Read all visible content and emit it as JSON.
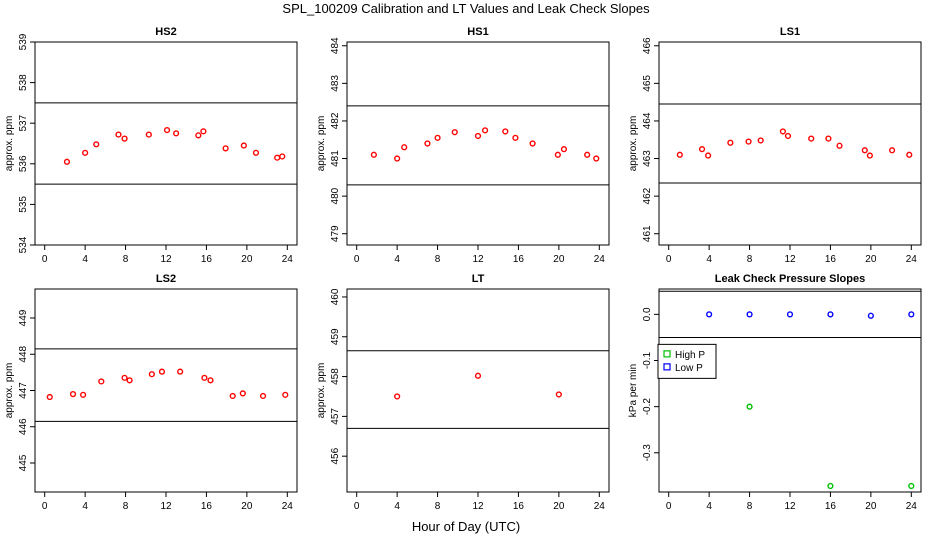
{
  "title": "SPL_100209  Calibration and LT Values and Leak Check Slopes",
  "xlabel": "Hour of Day (UTC)",
  "chart_data": [
    {
      "type": "scatter",
      "title": "HS2",
      "ylabel": "approx. ppm",
      "xlim": [
        0,
        24
      ],
      "ylim": [
        534,
        539
      ],
      "xticks": [
        0,
        4,
        8,
        12,
        16,
        20,
        24
      ],
      "yticks": [
        534,
        535,
        536,
        537,
        538,
        539
      ],
      "hlines": [
        535.5,
        537.5
      ],
      "series": [
        {
          "color": "#ff0000",
          "marker": "circle",
          "x": [
            2.2,
            4.0,
            5.1,
            7.3,
            7.9,
            10.3,
            12.1,
            13.0,
            15.2,
            15.7,
            17.9,
            19.7,
            20.9,
            23.0,
            23.5
          ],
          "y": [
            536.05,
            536.27,
            536.48,
            536.72,
            536.62,
            536.72,
            536.83,
            536.75,
            536.7,
            536.8,
            536.38,
            536.45,
            536.27,
            536.15,
            536.18
          ]
        }
      ]
    },
    {
      "type": "scatter",
      "title": "HS1",
      "ylabel": "approx. ppm",
      "xlim": [
        0,
        24
      ],
      "ylim": [
        478.7,
        484.1
      ],
      "xticks": [
        0,
        4,
        8,
        12,
        16,
        20,
        24
      ],
      "yticks": [
        479,
        480,
        481,
        482,
        483,
        484
      ],
      "hlines": [
        480.3,
        482.4
      ],
      "series": [
        {
          "color": "#ff0000",
          "marker": "circle",
          "x": [
            1.7,
            4.0,
            4.7,
            7.0,
            8.0,
            9.7,
            12.0,
            12.7,
            14.7,
            15.7,
            17.4,
            19.9,
            20.5,
            22.8,
            23.7
          ],
          "y": [
            481.1,
            481.0,
            481.3,
            481.4,
            481.55,
            481.7,
            481.6,
            481.75,
            481.72,
            481.55,
            481.4,
            481.1,
            481.25,
            481.1,
            481.0
          ]
        }
      ]
    },
    {
      "type": "scatter",
      "title": "LS1",
      "ylabel": "approx. ppm",
      "xlim": [
        0,
        24
      ],
      "ylim": [
        460.7,
        466.1
      ],
      "xticks": [
        0,
        4,
        8,
        12,
        16,
        20,
        24
      ],
      "yticks": [
        461,
        462,
        463,
        464,
        465,
        466
      ],
      "hlines": [
        462.35,
        464.45
      ],
      "series": [
        {
          "color": "#ff0000",
          "marker": "circle",
          "x": [
            1.1,
            3.3,
            3.9,
            6.1,
            7.9,
            9.1,
            11.3,
            11.8,
            14.1,
            15.8,
            16.9,
            19.4,
            19.9,
            22.1,
            23.8
          ],
          "y": [
            463.1,
            463.25,
            463.08,
            463.42,
            463.45,
            463.48,
            463.72,
            463.6,
            463.53,
            463.53,
            463.34,
            463.22,
            463.08,
            463.22,
            463.1
          ]
        }
      ]
    },
    {
      "type": "scatter",
      "title": "LS2",
      "ylabel": "approx. ppm",
      "xlim": [
        0,
        24
      ],
      "ylim": [
        444.2,
        449.8
      ],
      "xticks": [
        0,
        4,
        8,
        12,
        16,
        20,
        24
      ],
      "yticks": [
        445,
        446,
        447,
        448,
        449
      ],
      "hlines": [
        446.15,
        448.15
      ],
      "series": [
        {
          "color": "#ff0000",
          "marker": "circle",
          "x": [
            0.5,
            2.8,
            3.8,
            5.6,
            7.9,
            8.4,
            10.6,
            11.6,
            13.4,
            15.8,
            16.4,
            18.6,
            19.6,
            21.6,
            23.8
          ],
          "y": [
            446.82,
            446.9,
            446.88,
            447.25,
            447.35,
            447.28,
            447.45,
            447.52,
            447.52,
            447.35,
            447.28,
            446.85,
            446.92,
            446.85,
            446.88
          ]
        }
      ]
    },
    {
      "type": "scatter",
      "title": "LT",
      "ylabel": "approx. ppm",
      "xlim": [
        0,
        24
      ],
      "ylim": [
        455.1,
        460.2
      ],
      "xticks": [
        0,
        4,
        8,
        12,
        16,
        20,
        24
      ],
      "yticks": [
        456,
        457,
        458,
        459,
        460
      ],
      "hlines": [
        456.7,
        458.65
      ],
      "series": [
        {
          "color": "#ff0000",
          "marker": "circle",
          "x": [
            4.0,
            12.0,
            20.0
          ],
          "y": [
            457.5,
            458.02,
            457.55
          ]
        }
      ]
    },
    {
      "type": "scatter",
      "title": "Leak Check Pressure Slopes",
      "ylabel": "kPa per min",
      "xlim": [
        0,
        24
      ],
      "ylim": [
        -0.385,
        0.055
      ],
      "xticks": [
        0,
        4,
        8,
        12,
        16,
        20,
        24
      ],
      "yticks": [
        0.0,
        -0.1,
        -0.2,
        -0.3
      ],
      "ytick_labels": [
        "0.0",
        "-0.1",
        "-0.2",
        "-0.3"
      ],
      "hlines": [
        -0.05,
        0.05
      ],
      "legend": {
        "position": "left",
        "entries": [
          {
            "label": "High P",
            "color": "#00c000",
            "marker": "square"
          },
          {
            "label": "Low P",
            "color": "#0000ff",
            "marker": "square"
          }
        ]
      },
      "series": [
        {
          "name": "High P",
          "color": "#00c000",
          "marker": "circle",
          "x": [
            8.0,
            16.0,
            24.0
          ],
          "y": [
            -0.2,
            -0.372,
            -0.372
          ]
        },
        {
          "name": "Low P",
          "color": "#0000ff",
          "marker": "circle",
          "x": [
            4.0,
            8.0,
            12.0,
            16.0,
            20.0,
            24.0
          ],
          "y": [
            0.0,
            0.0,
            0.0,
            0.0,
            -0.003,
            0.0
          ]
        }
      ]
    }
  ]
}
